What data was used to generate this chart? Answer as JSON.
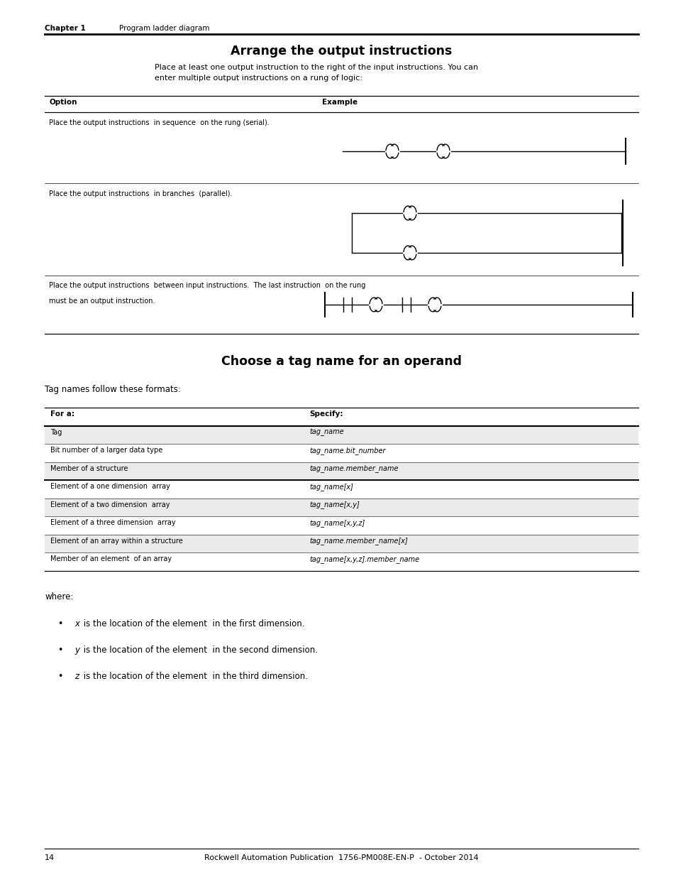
{
  "page_width": 9.54,
  "page_height": 12.35,
  "bg_color": "#ffffff",
  "header_chapter": "Chapter 1",
  "header_title": "Program ladder diagram",
  "section1_title": "Arrange the output instructions",
  "section1_intro": "Place at least one output instruction to the right of the input instructions. You can\nenter multiple output instructions on a rung of logic:",
  "table1_col1_header": "Option",
  "table1_col2_header": "Example",
  "table1_row1": "Place the output instructions  in sequence  on the rung (serial).",
  "table1_row2": "Place the output instructions  in branches  (parallel).",
  "table1_row3_line1": "Place the output instructions  between input instructions.  The last instruction  on the rung",
  "table1_row3_line2": "must be an output instruction.",
  "section2_title": "Choose a tag name for an operand",
  "section2_intro": "Tag names follow these formats:",
  "table2_col1_header": "For a:",
  "table2_col2_header": "Specify:",
  "table2_rows": [
    [
      "Tag",
      "tag_name"
    ],
    [
      "Bit number of a larger data type",
      "tag_name.bit_number"
    ],
    [
      "Member of a structure",
      "tag_name.member_name"
    ],
    [
      "Element of a one dimension  array",
      "tag_name[x]"
    ],
    [
      "Element of a two dimension  array",
      "tag_name[x,y]"
    ],
    [
      "Element of a three dimension  array",
      "tag_name[x,y,z]"
    ],
    [
      "Element of an array within a structure",
      "tag_name.member_name[x]"
    ],
    [
      "Member of an element  of an array",
      "tag_name[x,y,z].member_name"
    ]
  ],
  "where_text": "where:",
  "bullet1_it": "x",
  "bullet1_rest": " is the location of the element  in the first dimension.",
  "bullet2_it": "y",
  "bullet2_rest": " is the location of the element  in the second dimension.",
  "bullet3_it": "z",
  "bullet3_rest": " is the location of the element  in the third dimension.",
  "footer_page": "14",
  "footer_text": "Rockwell Automation Publication  1756-PM008E-EN-P  - October 2014"
}
